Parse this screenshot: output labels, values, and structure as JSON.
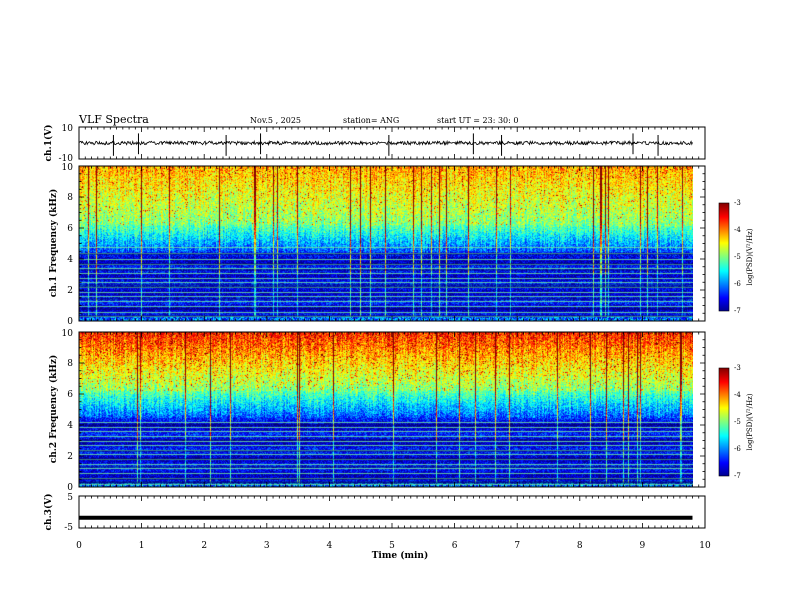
{
  "header": {
    "title": "VLF Spectra",
    "date": "Nov.5  , 2025",
    "station": "station= ANG",
    "start": "start  UT  =   23: 30: 0"
  },
  "chart_data": [
    {
      "type": "line",
      "id": "ch1-waveform",
      "ylabel": "ch.1(V)",
      "ylim": [
        -10,
        10
      ],
      "yticks": [
        "10",
        "-10"
      ],
      "baseline": 0,
      "spikes_min": [
        0.55,
        0.95,
        2.35,
        2.9,
        4.95,
        6.3,
        6.75,
        8.85,
        9.25
      ]
    },
    {
      "type": "heatmap",
      "id": "ch1-spectrogram",
      "ylabel": "ch.1  Frequency  (kHz)",
      "ylim": [
        0,
        10
      ],
      "yticks": [
        "0",
        "2",
        "4",
        "6",
        "8",
        "10"
      ],
      "xlim": [
        0,
        9.8
      ],
      "colorbar": {
        "label": "log(PSD)(V²/Hz)",
        "range": [
          -7,
          -3
        ],
        "ticks": [
          "-3",
          "-4",
          "-5",
          "-6",
          "-7"
        ]
      },
      "noise_lines_khz": [
        0.3,
        0.6,
        1.0,
        1.3,
        1.6,
        1.9,
        2.2,
        2.5,
        2.8,
        3.1,
        3.4,
        3.7,
        4.0,
        4.4,
        4.75
      ]
    },
    {
      "type": "heatmap",
      "id": "ch2-spectrogram",
      "ylabel": "ch.2  Frequency  (kHz)",
      "ylim": [
        0,
        10
      ],
      "yticks": [
        "0",
        "2",
        "4",
        "6",
        "8",
        "10"
      ],
      "xlim": [
        0,
        9.8
      ],
      "colorbar": {
        "label": "log(PSD)(V²/Hz)",
        "range": [
          -7,
          -3
        ],
        "ticks": [
          "-3",
          "-4",
          "-5",
          "-6",
          "-7"
        ]
      },
      "noise_lines_khz": [
        0.2,
        0.6,
        0.9,
        1.2,
        1.5,
        1.8,
        2.1,
        2.4,
        2.7,
        3.0,
        3.3,
        3.6,
        3.9,
        4.2
      ]
    },
    {
      "type": "line",
      "id": "ch3-waveform",
      "ylabel": "ch.3(V)",
      "ylim": [
        -5,
        5
      ],
      "yticks": [
        "5",
        "-5"
      ],
      "baseline": -1.8
    }
  ],
  "xaxis": {
    "xlabel": "Time  (min)",
    "xlim": [
      0,
      10
    ],
    "ticks": [
      "0",
      "1",
      "2",
      "3",
      "4",
      "5",
      "6",
      "7",
      "8",
      "9",
      "10"
    ]
  },
  "colors": {
    "jet": [
      "#00008f",
      "#0000ff",
      "#00ffff",
      "#7fff7f",
      "#ffff00",
      "#ff0000",
      "#800000"
    ],
    "waveform": "#000000"
  }
}
